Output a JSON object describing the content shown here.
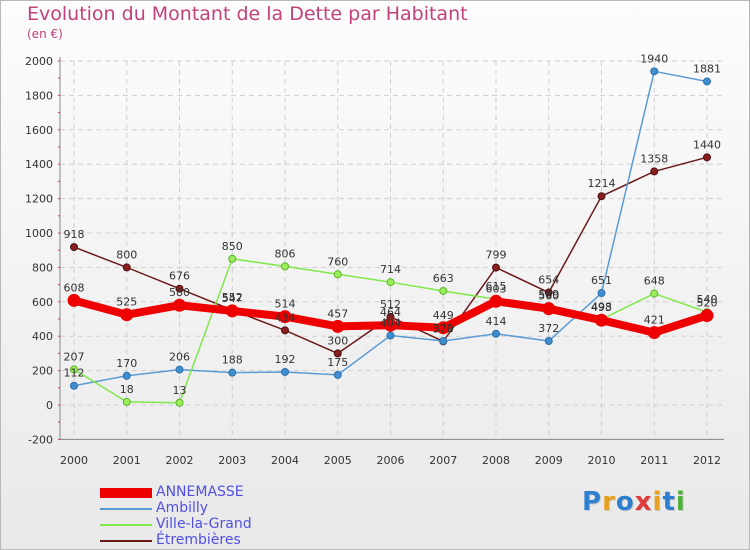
{
  "title": "Evolution du Montant de la Dette par Habitant",
  "unit": "(en €)",
  "logo": "Proxiti",
  "chart_data": {
    "type": "line",
    "title": "Evolution du Montant de la Dette par Habitant",
    "ylabel": "(en €)",
    "xlabel": "",
    "categories": [
      "2000",
      "2001",
      "2002",
      "2003",
      "2004",
      "2005",
      "2006",
      "2007",
      "2008",
      "2009",
      "2010",
      "2011",
      "2012"
    ],
    "ylim": [
      -200,
      2000
    ],
    "yticks": [
      -200,
      0,
      200,
      400,
      600,
      800,
      1000,
      1200,
      1400,
      1600,
      1800,
      2000
    ],
    "grid": true,
    "legend": "bottom-left",
    "series": [
      {
        "name": "ANNEMASSE",
        "color": "#ee0000",
        "values": [
          608,
          525,
          580,
          547,
          514,
          457,
          464,
          449,
          603,
          560,
          493,
          421,
          520
        ]
      },
      {
        "name": "Ambilly",
        "color": "#5b9bd5",
        "values": [
          112,
          170,
          206,
          188,
          192,
          175,
          404,
          372,
          414,
          372,
          651,
          1940,
          1881
        ]
      },
      {
        "name": "Ville-la-Grand",
        "color": "#7fe84a",
        "values": [
          207,
          18,
          13,
          850,
          806,
          760,
          714,
          663,
          615,
          569,
          498,
          648,
          540
        ]
      },
      {
        "name": "Étrembières",
        "color": "#6b1a1a",
        "values": [
          918,
          800,
          676,
          552,
          434,
          300,
          512,
          370,
          799,
          654,
          1214,
          1358,
          1440
        ]
      }
    ]
  }
}
